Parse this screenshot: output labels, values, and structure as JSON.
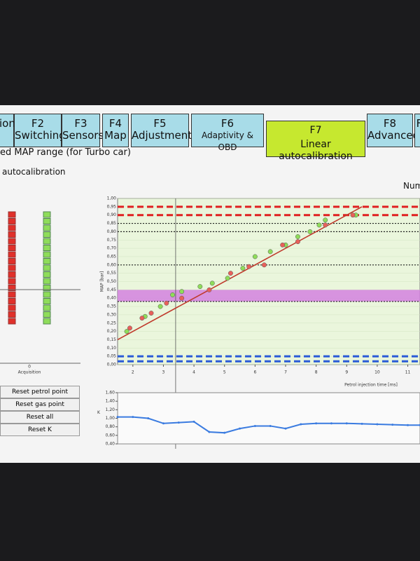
{
  "tabs": [
    {
      "key": "",
      "label": "ion"
    },
    {
      "key": "F2",
      "label": "Switching"
    },
    {
      "key": "F3",
      "label": "Sensors"
    },
    {
      "key": "F4",
      "label": "Map"
    },
    {
      "key": "F5",
      "label": "Adjustments"
    },
    {
      "key": "F6",
      "label": "Adaptivity & OBD"
    },
    {
      "key": "F7",
      "label": "Linear autocalibration"
    },
    {
      "key": "F8",
      "label": "Advanced"
    },
    {
      "key": "",
      "label": "F"
    }
  ],
  "header": {
    "title": "ed MAP range (for Turbo car)",
    "section": "autocalibration",
    "right": "Num"
  },
  "acquisition": {
    "tick": "0",
    "label": "Acquisition"
  },
  "buttons": [
    "Reset petrol point",
    "Reset gas point",
    "Reset all",
    "Reset K"
  ],
  "chart_data": [
    {
      "type": "scatter",
      "xlabel": "Petrol injection time [ms]",
      "ylabel": "MAP [bar]",
      "xlim": [
        1.5,
        11.4
      ],
      "xticks": [
        2,
        3,
        4,
        5,
        6,
        7,
        8,
        9,
        10,
        11
      ],
      "ylim": [
        0,
        1
      ],
      "yticks": [
        {
          "value": 0,
          "label": "0,00"
        },
        {
          "value": 0.05,
          "label": "0,05"
        },
        {
          "value": 0.1,
          "label": "0,10"
        },
        {
          "value": 0.15,
          "label": "0,15"
        },
        {
          "value": 0.2,
          "label": "0,20"
        },
        {
          "value": 0.25,
          "label": "0,25"
        },
        {
          "value": 0.3,
          "label": "0,30"
        },
        {
          "value": 0.35,
          "label": "0,35"
        },
        {
          "value": 0.4,
          "label": "0,40"
        },
        {
          "value": 0.45,
          "label": "0,45"
        },
        {
          "value": 0.5,
          "label": "0,50"
        },
        {
          "value": 0.55,
          "label": "0,55"
        },
        {
          "value": 0.6,
          "label": "0,60"
        },
        {
          "value": 0.65,
          "label": "0,65"
        },
        {
          "value": 0.7,
          "label": "0,70"
        },
        {
          "value": 0.75,
          "label": "0,75"
        },
        {
          "value": 0.8,
          "label": "0,80"
        },
        {
          "value": 0.85,
          "label": "0,85"
        },
        {
          "value": 0.9,
          "label": "0,90"
        },
        {
          "value": 0.95,
          "label": "0,95"
        },
        {
          "value": 1,
          "label": "1,00"
        }
      ],
      "band": {
        "range": [
          0.38,
          0.45
        ],
        "color": "#d27be0"
      },
      "reference_lines": [
        {
          "value": 0.95,
          "color": "#e02020",
          "style": "dashed"
        },
        {
          "value": 0.9,
          "color": "#e02020",
          "style": "dashed"
        },
        {
          "value": 0.85,
          "color": "#222222",
          "style": "dotted"
        },
        {
          "value": 0.8,
          "color": "#222222",
          "style": "dotted"
        },
        {
          "value": 0.6,
          "color": "#222222",
          "style": "dotted"
        },
        {
          "value": 0.38,
          "color": "#222222",
          "style": "dotted"
        },
        {
          "value": 0.05,
          "color": "#2a5bd7",
          "style": "dashed"
        },
        {
          "value": 0.02,
          "color": "#2a5bd7",
          "style": "dashed"
        }
      ],
      "x_marker": 3.4,
      "fit_line": {
        "x": [
          1.5,
          9.5
        ],
        "y": [
          0.15,
          0.95
        ],
        "color": "#c0392b"
      },
      "series": [
        {
          "name": "gas",
          "color": "#8fdc5a",
          "x": [
            1.8,
            2.4,
            2.9,
            3.3,
            3.6,
            4.2,
            4.6,
            5.1,
            5.6,
            6.0,
            6.5,
            7.0,
            7.4,
            7.8,
            8.1,
            8.3,
            9.3
          ],
          "values": [
            0.2,
            0.29,
            0.35,
            0.42,
            0.44,
            0.47,
            0.49,
            0.52,
            0.58,
            0.65,
            0.68,
            0.72,
            0.77,
            0.8,
            0.84,
            0.87,
            0.9
          ]
        },
        {
          "name": "petrol",
          "color": "#e8605a",
          "x": [
            1.9,
            2.3,
            2.6,
            3.1,
            3.6,
            4.5,
            5.2,
            5.8,
            6.3,
            6.9,
            7.4,
            8.3,
            9.2
          ],
          "values": [
            0.22,
            0.28,
            0.31,
            0.37,
            0.4,
            0.45,
            0.55,
            0.59,
            0.6,
            0.72,
            0.74,
            0.84,
            0.9
          ]
        }
      ]
    },
    {
      "type": "line",
      "ylabel": "K",
      "xlim": [
        1.5,
        11.4
      ],
      "ylim": [
        0.4,
        1.6
      ],
      "yticks": [
        {
          "value": 0.4,
          "label": "0,40"
        },
        {
          "value": 0.6,
          "label": "0,60"
        },
        {
          "value": 0.8,
          "label": "0,80"
        },
        {
          "value": 1,
          "label": "1,00"
        },
        {
          "value": 1.2,
          "label": "1,20"
        },
        {
          "value": 1.4,
          "label": "1,40"
        },
        {
          "value": 1.6,
          "label": "1,60"
        }
      ],
      "color": "#3a7be0",
      "x": [
        1.5,
        2.0,
        2.5,
        3.0,
        3.5,
        4.0,
        4.5,
        5.0,
        5.5,
        6.0,
        6.5,
        7.0,
        7.5,
        8.0,
        8.5,
        9.0,
        9.5,
        10.0,
        10.5,
        11.0,
        11.4
      ],
      "values": [
        1.03,
        1.03,
        1.0,
        0.88,
        0.9,
        0.92,
        0.68,
        0.66,
        0.76,
        0.82,
        0.82,
        0.76,
        0.86,
        0.88,
        0.88,
        0.88,
        0.87,
        0.86,
        0.85,
        0.84,
        0.84
      ]
    }
  ]
}
